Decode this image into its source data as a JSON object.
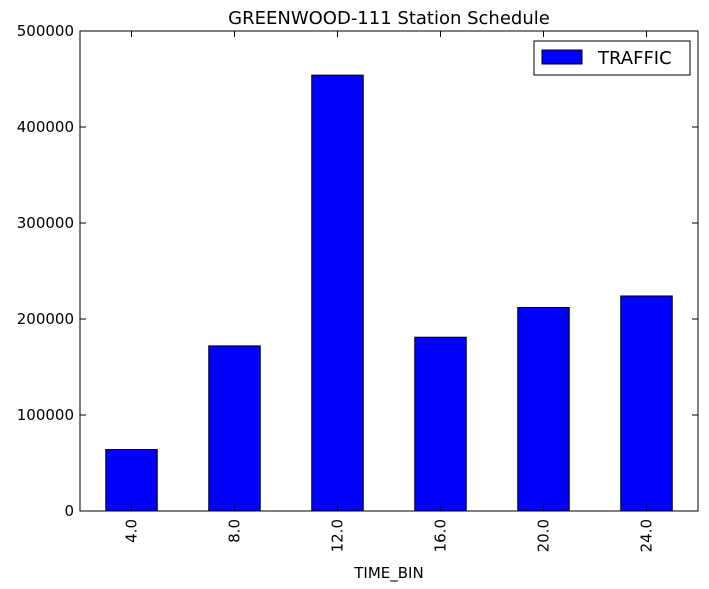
{
  "chart_data": {
    "type": "bar",
    "title": "GREENWOOD-111 Station Schedule",
    "xlabel": "TIME_BIN",
    "ylabel": "",
    "categories": [
      "4.0",
      "8.0",
      "12.0",
      "16.0",
      "20.0",
      "24.0"
    ],
    "series": [
      {
        "name": "TRAFFIC",
        "color": "#0000ff",
        "values": [
          64000,
          172000,
          454000,
          181000,
          212000,
          224000
        ]
      }
    ],
    "ylim": [
      0,
      500000
    ],
    "yticks": [
      0,
      100000,
      200000,
      300000,
      400000,
      500000
    ],
    "ytick_labels": [
      "0",
      "100000",
      "200000",
      "300000",
      "400000",
      "500000"
    ],
    "grid": false,
    "legend_position": "top-right"
  }
}
